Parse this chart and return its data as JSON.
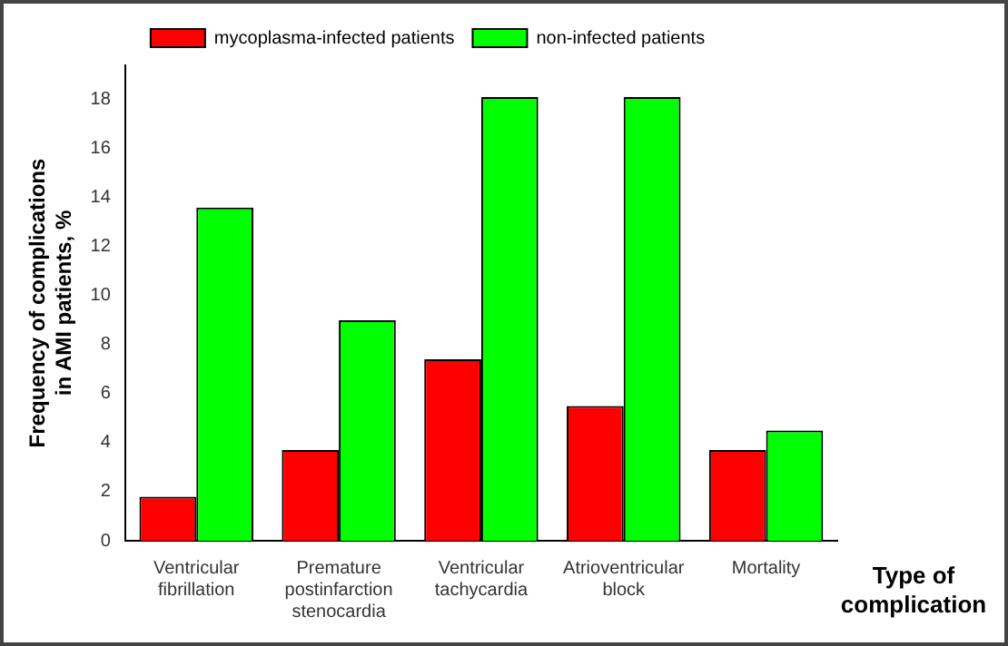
{
  "chart_data": {
    "type": "bar",
    "xlabel": "Type of\ncomplication",
    "ylabel": "Frequency of complications\nin AMI patients, %",
    "categories": [
      "Ventricular\nfibrillation",
      "Premature\npostinfarction\nstenocardia",
      "Ventricular\ntachycardia",
      "Atrioventricular\nblock",
      "Mortality"
    ],
    "series": [
      {
        "name": "mycoplasma-infected patients",
        "color": "#ff0000",
        "values": [
          1.8,
          3.7,
          7.4,
          5.5,
          3.7
        ]
      },
      {
        "name": "non-infected patients",
        "color": "#00ff00",
        "values": [
          13.6,
          9.0,
          18.1,
          18.1,
          4.5
        ]
      }
    ],
    "ylim": [
      0,
      19.4
    ],
    "yticks": [
      0,
      2,
      4,
      6,
      8,
      10,
      12,
      14,
      16,
      18
    ],
    "grid": false,
    "legend": "top"
  }
}
